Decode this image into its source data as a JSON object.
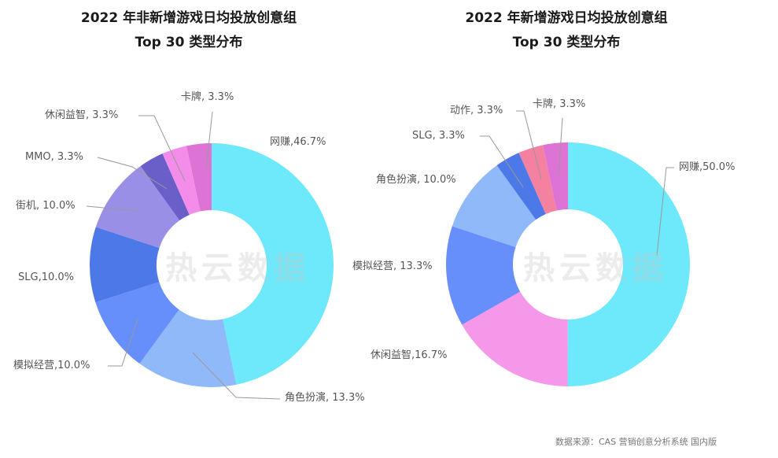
{
  "chart_data": [
    {
      "type": "pie",
      "donut": true,
      "title_line1": "2022 年非新增游戏日均投放创意组",
      "title_line2": "Top 30 类型分布",
      "labels": [
        "网赚,46.7%",
        "角色扮演, 13.3%",
        "模拟经营,10.0%",
        "SLG,10.0%",
        "街机, 10.0%",
        "MMO, 3.3%",
        "休闲益智, 3.3%",
        "卡牌, 3.3%"
      ],
      "categories": [
        "网赚",
        "角色扮演",
        "模拟经营",
        "SLG",
        "街机",
        "MMO",
        "休闲益智",
        "卡牌"
      ],
      "values": [
        46.7,
        13.3,
        10.0,
        10.0,
        10.0,
        3.3,
        3.3,
        3.3
      ],
      "colors": [
        "#6ee8fb",
        "#8fb9f8",
        "#668ffb",
        "#4d78e8",
        "#9a8fe6",
        "#6a5fc8",
        "#f48de9",
        "#dd73d4"
      ]
    },
    {
      "type": "pie",
      "donut": true,
      "title_line1": "2022 年新增游戏日均投放创意组",
      "title_line2": "Top 30 类型分布",
      "labels": [
        "网赚,50.0%",
        "休闲益智,16.7%",
        "模拟经营, 13.3%",
        "角色扮演, 10.0%",
        "SLG, 3.3%",
        "动作, 3.3%",
        "卡牌, 3.3%"
      ],
      "categories": [
        "网赚",
        "休闲益智",
        "模拟经营",
        "角色扮演",
        "SLG",
        "动作",
        "卡牌"
      ],
      "values": [
        50.0,
        16.7,
        13.3,
        10.0,
        3.3,
        3.3,
        3.3
      ],
      "colors": [
        "#6ee8fb",
        "#f598e9",
        "#668ffb",
        "#8fb9f8",
        "#4d78e8",
        "#f4819f",
        "#dd73d4"
      ]
    }
  ],
  "watermark": "热云数据",
  "footer": "数据来源：CAS 营销创意分析系统 国内版"
}
